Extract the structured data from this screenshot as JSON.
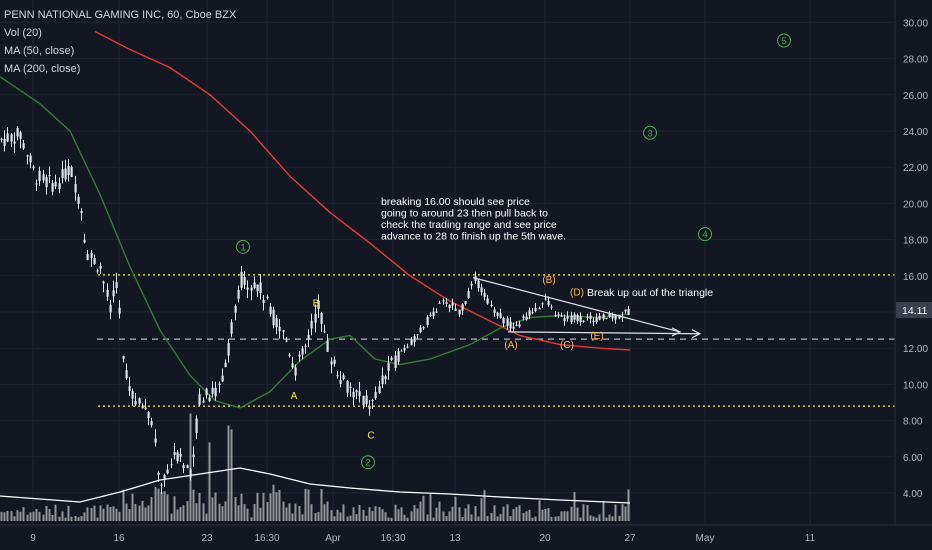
{
  "chart_data": {
    "type": "candlestick",
    "symbol_header": "PENN NATIONAL GAMING INC, 60, Cboe BZX",
    "indicators": [
      "Vol (20)",
      "MA (50, close)",
      "MA (200, close)"
    ],
    "y_ticks": [
      "30.00",
      "28.00",
      "26.00",
      "24.00",
      "22.00",
      "20.00",
      "18.00",
      "16.00",
      "14.00",
      "12.00",
      "10.00",
      "8.00",
      "6.00",
      "4.00"
    ],
    "ylim": [
      3,
      31
    ],
    "current_price": "14.11",
    "x_ticks": [
      "9",
      "16",
      "23",
      "16:30",
      "Apr",
      "16:30",
      "13",
      "20",
      "27",
      "May",
      "11"
    ],
    "levels": [
      {
        "value": 16.05,
        "style": "dotted",
        "color": "#ffeb3b"
      },
      {
        "value": 8.8,
        "style": "dotted",
        "color": "#ffeb3b"
      },
      {
        "value": 12.5,
        "style": "dashed",
        "color": "#b2b5be"
      }
    ],
    "wave_labels": [
      {
        "text": "1",
        "circled": true,
        "price": 17.6,
        "color": "#4caf50"
      },
      {
        "text": "2",
        "circled": true,
        "price": 5.7,
        "color": "#4caf50"
      },
      {
        "text": "3",
        "circled": true,
        "price": 23.9,
        "color": "#4caf50"
      },
      {
        "text": "4",
        "circled": true,
        "price": 18.3,
        "color": "#4caf50"
      },
      {
        "text": "5",
        "circled": true,
        "price": 29.0,
        "color": "#4caf50"
      },
      {
        "text": "A",
        "circled": false,
        "price": 9.4,
        "color": "#ffeb3b"
      },
      {
        "text": "B",
        "circled": false,
        "price": 14.5,
        "color": "#ffeb3b"
      },
      {
        "text": "C",
        "circled": false,
        "price": 7.2,
        "color": "#ffeb3b"
      },
      {
        "text": "(A)",
        "price": 12.2,
        "color": "#ffb74d"
      },
      {
        "text": "(B)",
        "price": 15.8,
        "color": "#ffb74d"
      },
      {
        "text": "(C)",
        "price": 12.2,
        "color": "#ffb74d"
      },
      {
        "text": "(D)",
        "price": 15.1,
        "color": "#ffb74d"
      },
      {
        "text": "(E)",
        "price": 12.7,
        "color": "#ffb74d"
      }
    ],
    "note_main": [
      "breaking 16.00 should see price",
      "going to around 23 then pull back to",
      "check the trading range and see price",
      "advance to 28 to finish up the 5th wave."
    ],
    "note_triangle": "Break up out of the triangle",
    "colors": {
      "up": "#26a69a",
      "down": "#ef5350",
      "candle": "#e0e3eb",
      "ma50": "#2e7d32",
      "ma200": "#e53935",
      "volume": "#ffffff",
      "grid": "#1f2433",
      "price_tag": "#3b3f4c"
    }
  }
}
